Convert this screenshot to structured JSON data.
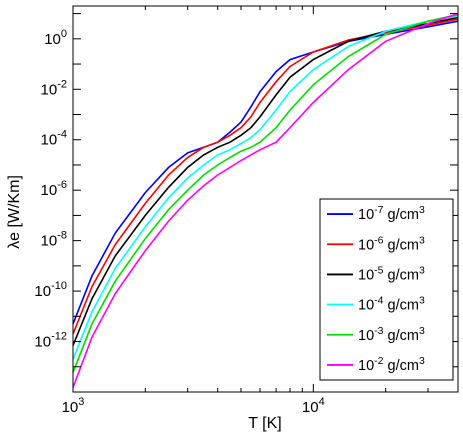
{
  "chart_data": {
    "type": "line",
    "xlabel": "T [K]",
    "ylabel": "λe [W/Km]",
    "xscale": "log",
    "yscale": "log",
    "xlim": [
      1000,
      40000
    ],
    "ylim": [
      1e-14,
      20
    ],
    "legend_position": "lower-right",
    "x_ticks": [
      {
        "value": 1000,
        "base": "10",
        "exp": "3"
      },
      {
        "value": 10000,
        "base": "10",
        "exp": "4"
      }
    ],
    "y_ticks": [
      {
        "value": 1e-12,
        "base": "10",
        "exp": "-12"
      },
      {
        "value": 1e-10,
        "base": "10",
        "exp": "-10"
      },
      {
        "value": 1e-08,
        "base": "10",
        "exp": "-8"
      },
      {
        "value": 1e-06,
        "base": "10",
        "exp": "-6"
      },
      {
        "value": 0.0001,
        "base": "10",
        "exp": "-4"
      },
      {
        "value": 0.01,
        "base": "10",
        "exp": "-2"
      },
      {
        "value": 1,
        "base": "10",
        "exp": "0"
      }
    ],
    "series": [
      {
        "name": "10-7 g/cm3",
        "density_exp": "-7",
        "color": "#0000ff",
        "x": [
          1000,
          1200,
          1500,
          2000,
          2500,
          3000,
          3500,
          4000,
          4500,
          5000,
          5500,
          6000,
          7000,
          8000,
          10000,
          14000,
          20000,
          30000,
          40000
        ],
        "y": [
          5e-12,
          4e-10,
          2e-08,
          8e-07,
          8e-06,
          3e-05,
          5e-05,
          8e-05,
          0.0002,
          0.0005,
          0.002,
          0.008,
          0.05,
          0.15,
          0.3,
          0.8,
          1.5,
          3,
          5
        ]
      },
      {
        "name": "10-6 g/cm3",
        "density_exp": "-6",
        "color": "#ff0000",
        "x": [
          1000,
          1200,
          1500,
          2000,
          2500,
          3000,
          3500,
          4000,
          4500,
          5000,
          5500,
          6000,
          7000,
          8000,
          10000,
          14000,
          20000,
          30000,
          40000
        ],
        "y": [
          2e-12,
          1.5e-10,
          7e-09,
          3e-07,
          4e-06,
          2e-05,
          5e-05,
          8e-05,
          0.00015,
          0.0003,
          0.0008,
          0.003,
          0.02,
          0.08,
          0.3,
          0.9,
          1.8,
          3.5,
          6
        ]
      },
      {
        "name": "10-5 g/cm3",
        "density_exp": "-5",
        "color": "#000000",
        "x": [
          1000,
          1200,
          1500,
          2000,
          2500,
          3000,
          3500,
          4000,
          4500,
          5000,
          5500,
          6000,
          7000,
          8000,
          10000,
          14000,
          20000,
          30000,
          40000
        ],
        "y": [
          7e-13,
          5e-11,
          2.5e-09,
          1e-07,
          1.3e-06,
          8e-06,
          2.5e-05,
          5e-05,
          8e-05,
          0.00015,
          0.0003,
          0.0008,
          0.006,
          0.03,
          0.15,
          0.8,
          2,
          4,
          7
        ]
      },
      {
        "name": "10-4 g/cm3",
        "density_exp": "-4",
        "color": "#00ffff",
        "x": [
          1000,
          1200,
          1500,
          2000,
          2500,
          3000,
          3500,
          4000,
          4500,
          5000,
          5500,
          6000,
          7000,
          8000,
          10000,
          14000,
          20000,
          30000,
          40000
        ],
        "y": [
          2e-13,
          1.5e-11,
          8e-10,
          3.5e-08,
          5e-07,
          3e-06,
          1e-05,
          2.5e-05,
          4e-05,
          7e-05,
          0.00012,
          0.00025,
          0.0015,
          0.008,
          0.06,
          0.5,
          2,
          5,
          8
        ]
      },
      {
        "name": "10-3 g/cm3",
        "density_exp": "-3",
        "color": "#00dd00",
        "x": [
          1000,
          1200,
          1500,
          2000,
          2500,
          3000,
          3500,
          4000,
          4500,
          5000,
          5500,
          6000,
          7000,
          8000,
          10000,
          14000,
          20000,
          30000,
          40000
        ],
        "y": [
          6e-14,
          5e-12,
          2.5e-10,
          1.2e-08,
          1.7e-07,
          1e-06,
          4e-06,
          1e-05,
          2e-05,
          3.5e-05,
          5e-05,
          8e-05,
          0.0003,
          0.0015,
          0.015,
          0.2,
          1.5,
          5,
          9
        ]
      },
      {
        "name": "10-2 g/cm3",
        "density_exp": "-2",
        "color": "#ff00ff",
        "x": [
          1000,
          1200,
          1500,
          2000,
          2500,
          3000,
          3500,
          4000,
          4500,
          5000,
          5500,
          6000,
          7000,
          8000,
          10000,
          14000,
          20000,
          30000,
          40000
        ],
        "y": [
          1.5e-14,
          1.5e-12,
          8e-11,
          4e-09,
          6e-08,
          4e-07,
          1.5e-06,
          4e-06,
          8e-06,
          1.5e-05,
          2.5e-05,
          4e-05,
          8e-05,
          0.0003,
          0.003,
          0.06,
          0.8,
          4,
          10
        ]
      }
    ],
    "legend_unit": "g/cm",
    "legend_unit_exp": "3"
  }
}
